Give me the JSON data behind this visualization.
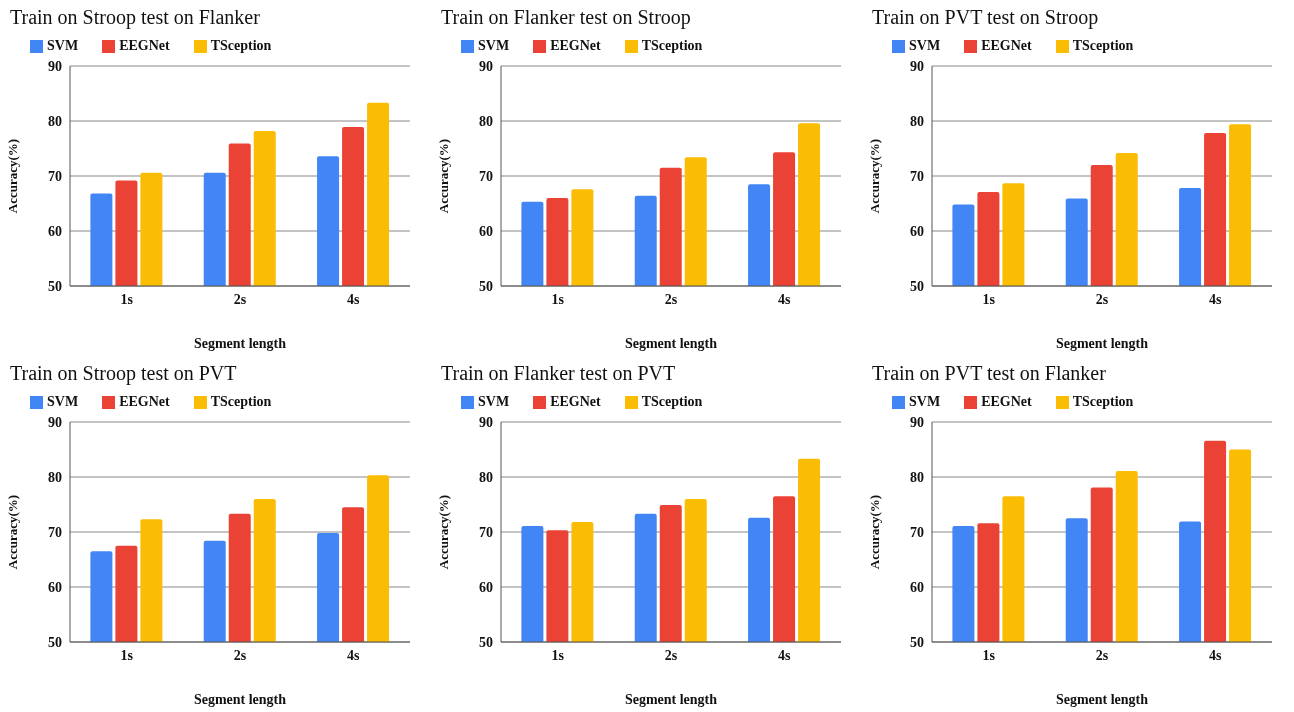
{
  "chart_data": [
    {
      "type": "bar",
      "title": "Train on Stroop test on Flanker",
      "xlabel": "Segment length",
      "ylabel": "Accuracy(%)",
      "categories": [
        "1s",
        "2s",
        "4s"
      ],
      "series": [
        {
          "name": "SVM",
          "color": "#4285f4",
          "values": [
            66.8,
            70.6,
            73.6
          ]
        },
        {
          "name": "EEGNet",
          "color": "#ea4335",
          "values": [
            69.2,
            75.9,
            78.9
          ]
        },
        {
          "name": "TSception",
          "color": "#fbbc04",
          "values": [
            70.6,
            78.2,
            83.3
          ]
        }
      ],
      "ylim": [
        50,
        90
      ],
      "yticks": [
        50,
        60,
        70,
        80,
        90
      ],
      "grid": "y",
      "legend": "top left"
    },
    {
      "type": "bar",
      "title": "Train on Flanker test on Stroop",
      "xlabel": "Segment length",
      "ylabel": "Accuracy(%)",
      "categories": [
        "1s",
        "2s",
        "4s"
      ],
      "series": [
        {
          "name": "SVM",
          "color": "#4285f4",
          "values": [
            65.3,
            66.4,
            68.5
          ]
        },
        {
          "name": "EEGNet",
          "color": "#ea4335",
          "values": [
            66.0,
            71.5,
            74.3
          ]
        },
        {
          "name": "TSception",
          "color": "#fbbc04",
          "values": [
            67.6,
            73.4,
            79.6
          ]
        }
      ],
      "ylim": [
        50,
        90
      ],
      "yticks": [
        50,
        60,
        70,
        80,
        90
      ],
      "grid": "y",
      "legend": "top left"
    },
    {
      "type": "bar",
      "title": "Train on PVT test on Stroop",
      "xlabel": "Segment length",
      "ylabel": "Accuracy(%)",
      "categories": [
        "1s",
        "2s",
        "4s"
      ],
      "series": [
        {
          "name": "SVM",
          "color": "#4285f4",
          "values": [
            64.8,
            65.9,
            67.8
          ]
        },
        {
          "name": "EEGNet",
          "color": "#ea4335",
          "values": [
            67.1,
            72.0,
            77.8
          ]
        },
        {
          "name": "TSception",
          "color": "#fbbc04",
          "values": [
            68.7,
            74.2,
            79.4
          ]
        }
      ],
      "ylim": [
        50,
        90
      ],
      "yticks": [
        50,
        60,
        70,
        80,
        90
      ],
      "grid": "y",
      "legend": "top left"
    },
    {
      "type": "bar",
      "title": "Train on Stroop test on PVT",
      "xlabel": "Segment length",
      "ylabel": "Accuracy(%)",
      "categories": [
        "1s",
        "2s",
        "4s"
      ],
      "series": [
        {
          "name": "SVM",
          "color": "#4285f4",
          "values": [
            66.5,
            68.4,
            69.8
          ]
        },
        {
          "name": "EEGNet",
          "color": "#ea4335",
          "values": [
            67.5,
            73.3,
            74.5
          ]
        },
        {
          "name": "TSception",
          "color": "#fbbc04",
          "values": [
            72.3,
            76.0,
            80.3
          ]
        }
      ],
      "ylim": [
        50,
        90
      ],
      "yticks": [
        50,
        60,
        70,
        80,
        90
      ],
      "grid": "y",
      "legend": "top left"
    },
    {
      "type": "bar",
      "title": "Train on Flanker test on PVT",
      "xlabel": "Segment length",
      "ylabel": "Accuracy(%)",
      "categories": [
        "1s",
        "2s",
        "4s"
      ],
      "series": [
        {
          "name": "SVM",
          "color": "#4285f4",
          "values": [
            71.1,
            73.3,
            72.6
          ]
        },
        {
          "name": "EEGNet",
          "color": "#ea4335",
          "values": [
            70.3,
            74.9,
            76.5
          ]
        },
        {
          "name": "TSception",
          "color": "#fbbc04",
          "values": [
            71.8,
            76.0,
            83.3
          ]
        }
      ],
      "ylim": [
        50,
        90
      ],
      "yticks": [
        50,
        60,
        70,
        80,
        90
      ],
      "grid": "y",
      "legend": "top left"
    },
    {
      "type": "bar",
      "title": "Train on PVT test on Flanker",
      "xlabel": "Segment length",
      "ylabel": "Accuracy(%)",
      "categories": [
        "1s",
        "2s",
        "4s"
      ],
      "series": [
        {
          "name": "SVM",
          "color": "#4285f4",
          "values": [
            71.1,
            72.5,
            71.9
          ]
        },
        {
          "name": "EEGNet",
          "color": "#ea4335",
          "values": [
            71.6,
            78.1,
            86.6
          ]
        },
        {
          "name": "TSception",
          "color": "#fbbc04",
          "values": [
            76.5,
            81.1,
            85.0
          ]
        }
      ],
      "ylim": [
        50,
        90
      ],
      "yticks": [
        50,
        60,
        70,
        80,
        90
      ],
      "grid": "y",
      "legend": "top left"
    }
  ]
}
